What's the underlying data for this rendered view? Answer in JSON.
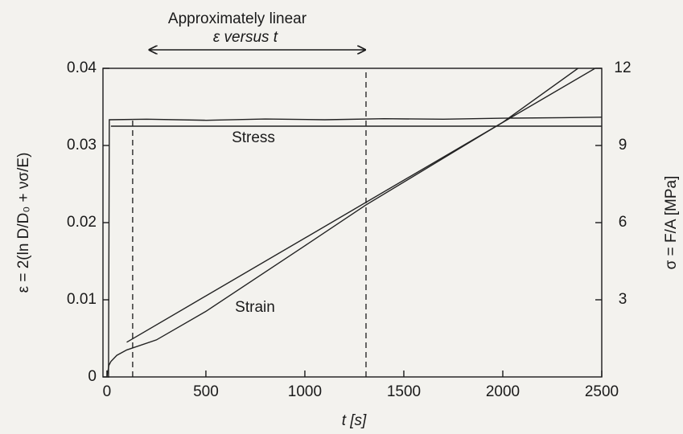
{
  "chart_data": {
    "type": "line",
    "annotations": [
      "Approximately linear",
      "ε versus t"
    ],
    "arrow_x": [
      210,
      1309
    ],
    "vlines": [
      130,
      1309
    ],
    "xlabel": "t [s]",
    "ylabel": "ε = 2(ln D/D₀ + νσ/E)",
    "y2label": "σ = F/A  [MPa]",
    "xlim": [
      -20,
      2500
    ],
    "xticks": [
      0,
      500,
      1000,
      1500,
      2000,
      2500
    ],
    "ylim": [
      0,
      0.04
    ],
    "yticks": [
      0,
      0.01,
      0.02,
      0.03,
      0.04
    ],
    "y2lim": [
      0,
      12
    ],
    "y2ticks": [
      3,
      6,
      9,
      12
    ],
    "color": "#222222",
    "series": [
      {
        "name": "Stress",
        "axis": "y2",
        "x": [
          0,
          8,
          12,
          200,
          500,
          800,
          1100,
          1400,
          1700,
          2000,
          2300,
          2500
        ],
        "values": [
          0,
          0,
          10.0,
          10.02,
          9.98,
          10.03,
          10.0,
          10.04,
          10.02,
          10.06,
          10.08,
          10.1
        ]
      },
      {
        "axis": "y2",
        "x": [
          20,
          2500
        ],
        "values": [
          9.75,
          9.75
        ]
      },
      {
        "name": "Strain",
        "x": [
          0,
          10,
          20,
          50,
          100,
          250,
          500,
          1000,
          1309,
          2000,
          2380
        ],
        "values": [
          0,
          0.0015,
          0.002,
          0.0028,
          0.0035,
          0.0048,
          0.0085,
          0.017,
          0.0223,
          0.033,
          0.04
        ]
      },
      {
        "x": [
          100,
          2500
        ],
        "values": [
          0.0045,
          0.0405
        ]
      }
    ]
  }
}
